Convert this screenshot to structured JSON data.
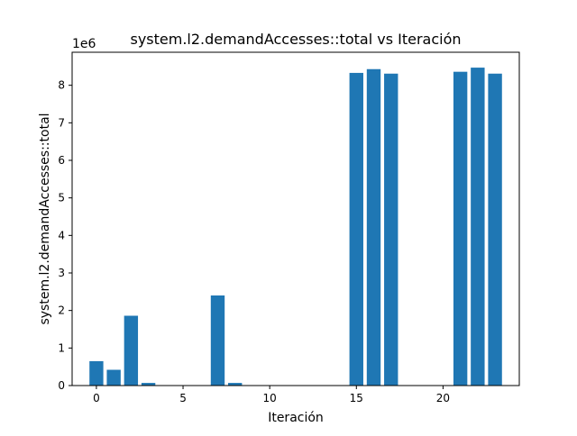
{
  "chart_data": {
    "type": "bar",
    "title": "system.l2.demandAccesses::total vs Iteración",
    "xlabel": "Iteración",
    "ylabel": "system.l2.demandAccesses::total",
    "scale_label": "1e6",
    "bar_color": "#1f77b4",
    "xlim": [
      -1.4,
      24.4
    ],
    "ylim": [
      0,
      8.88
    ],
    "x_ticks": [
      0,
      5,
      10,
      15,
      20
    ],
    "y_ticks": [
      0,
      1,
      2,
      3,
      4,
      5,
      6,
      7,
      8
    ],
    "grid": false,
    "legend": "none",
    "x": [
      0,
      1,
      2,
      3,
      4,
      5,
      6,
      7,
      8,
      9,
      10,
      11,
      12,
      13,
      14,
      15,
      16,
      17,
      18,
      19,
      20,
      21,
      22,
      23
    ],
    "values": [
      0.65,
      0.42,
      1.86,
      0.07,
      0,
      0,
      0,
      2.4,
      0.07,
      0,
      0,
      0,
      0,
      0,
      0,
      8.33,
      8.43,
      8.31,
      0,
      0,
      0,
      8.36,
      8.47,
      8.31
    ]
  }
}
